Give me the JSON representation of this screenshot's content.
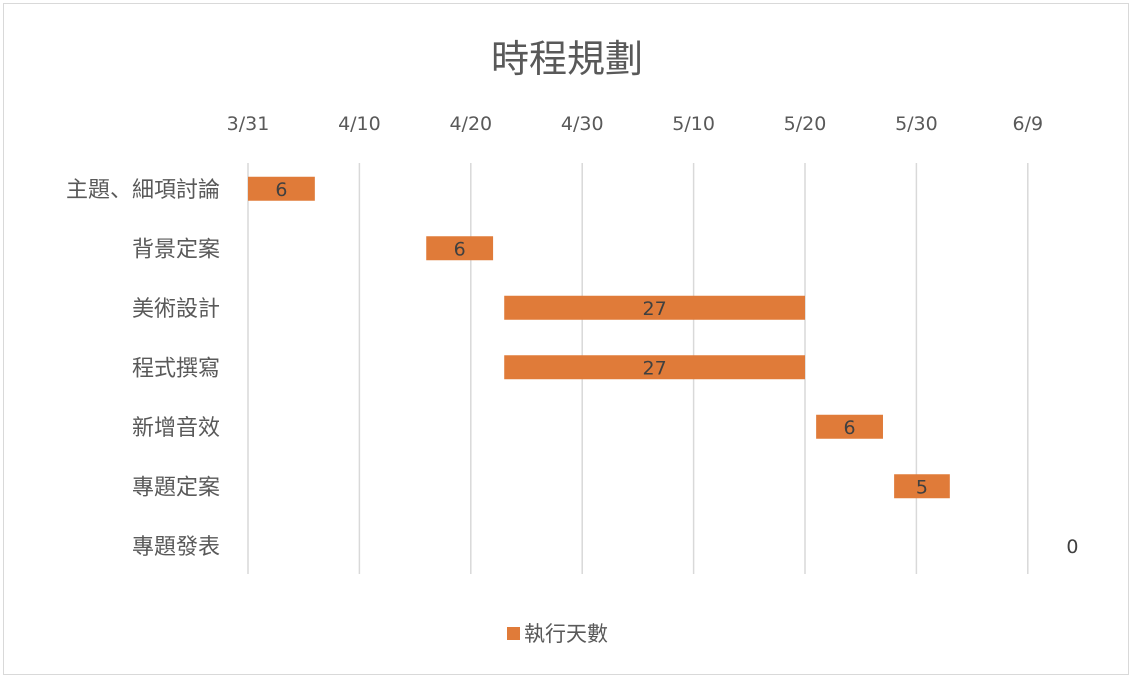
{
  "chart_data": {
    "type": "bar",
    "orientation": "horizontal",
    "title": "時程規劃",
    "x_tick_labels": [
      "3/31",
      "4/10",
      "4/20",
      "4/30",
      "5/10",
      "5/20",
      "5/30",
      "6/9"
    ],
    "x_ticks_days_after_3_31": [
      0,
      10,
      20,
      30,
      40,
      50,
      60,
      70
    ],
    "xlim_days_after_3_31": [
      0,
      70
    ],
    "categories": [
      "主題、細項討論",
      "背景定案",
      "美術設計",
      "程式撰寫",
      "新增音效",
      "專題定案",
      "專題發表"
    ],
    "series": [
      {
        "name": "執行天數",
        "color": "#e07b39",
        "start_days_after_3_31": [
          0,
          16,
          23,
          23,
          51,
          58,
          74
        ],
        "values": [
          6,
          6,
          27,
          27,
          6,
          5,
          0
        ]
      }
    ],
    "grid": true,
    "legend_position": "bottom"
  }
}
